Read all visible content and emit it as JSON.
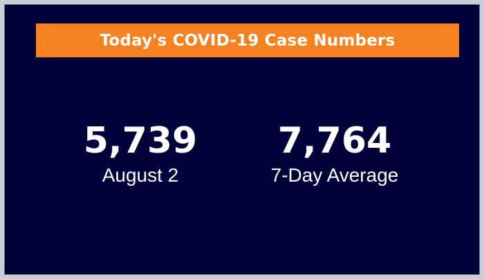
{
  "banner": {
    "title": "Today's COVID-19 Case Numbers"
  },
  "stats": [
    {
      "value": "5,739",
      "label": "August 2"
    },
    {
      "value": "7,764",
      "label": "7-Day Average"
    }
  ],
  "colors": {
    "background": "#02023a",
    "banner": "#f5821f",
    "text": "#ffffff"
  }
}
